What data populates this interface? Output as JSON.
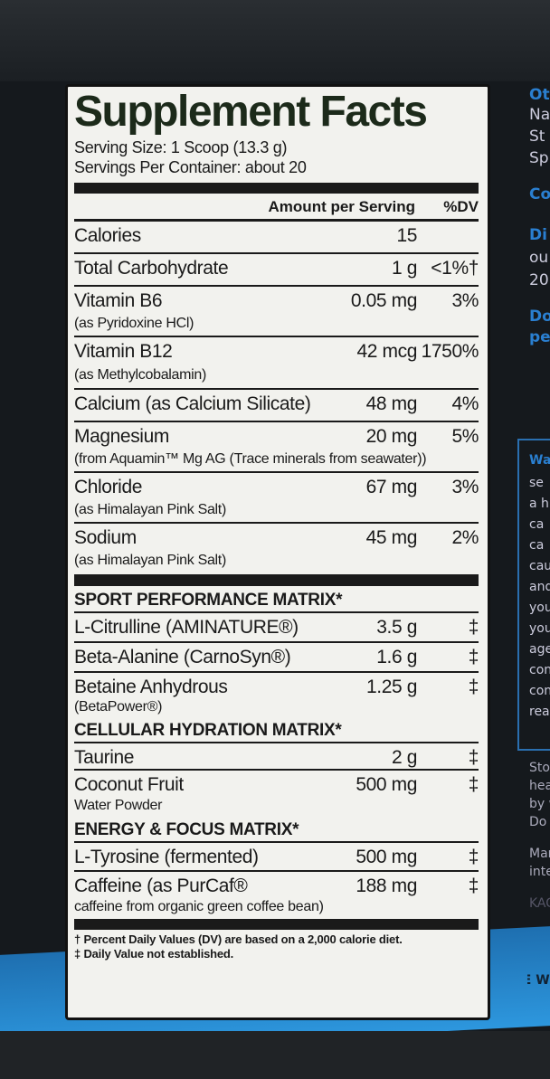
{
  "title": "Supplement Facts",
  "serving_size": "Serving Size: 1 Scoop (13.3 g)",
  "servings_per_container": "Servings Per Container: about 20",
  "header": {
    "amount": "Amount per Serving",
    "dv": "%DV"
  },
  "nutrients": [
    {
      "name": "Calories",
      "sub": "",
      "amount": "15",
      "dv": ""
    },
    {
      "name": "Total Carbohydrate",
      "sub": "",
      "amount": "1 g",
      "dv": "<1%†"
    },
    {
      "name": "Vitamin B6",
      "sub": "(as Pyridoxine HCl)",
      "amount": "0.05 mg",
      "dv": "3%"
    },
    {
      "name": "Vitamin B12",
      "sub": "(as Methylcobalamin)",
      "amount": "42 mcg",
      "dv": "1750%"
    },
    {
      "name": "Calcium (as Calcium Silicate)",
      "sub": "",
      "amount": "48 mg",
      "dv": "4%"
    },
    {
      "name": "Magnesium",
      "sub": "(from Aquamin™ Mg AG (Trace minerals from seawater))",
      "amount": "20 mg",
      "dv": "5%"
    },
    {
      "name": "Chloride",
      "sub": "(as Himalayan Pink Salt)",
      "amount": "67 mg",
      "dv": "3%"
    },
    {
      "name": "Sodium",
      "sub": "(as Himalayan Pink Salt)",
      "amount": "45 mg",
      "dv": "2%"
    }
  ],
  "sport": {
    "title": "SPORT PERFORMANCE MATRIX*",
    "items": [
      {
        "name": "L-Citrulline (AMINATURE®)",
        "sub": "",
        "amount": "3.5 g",
        "dv": "‡"
      },
      {
        "name": "Beta-Alanine (CarnoSyn®)",
        "sub": "",
        "amount": "1.6 g",
        "dv": "‡"
      },
      {
        "name": "Betaine Anhydrous",
        "sub": "(BetaPower®)",
        "amount": "1.25 g",
        "dv": "‡"
      }
    ]
  },
  "hydration": {
    "title": "CELLULAR HYDRATION MATRIX*",
    "items": [
      {
        "name": "Taurine",
        "sub": "",
        "amount": "2 g",
        "dv": "‡"
      },
      {
        "name": "Coconut Fruit",
        "sub": "Water Powder",
        "amount": "500 mg",
        "dv": "‡"
      }
    ]
  },
  "energy": {
    "title": "ENERGY & FOCUS MATRIX*",
    "items": [
      {
        "name": "L-Tyrosine (fermented)",
        "sub": "",
        "amount": "500 mg",
        "dv": "‡"
      },
      {
        "name": "Caffeine (as PurCaf®",
        "sub": "caffeine from organic green coffee bean)",
        "amount": "188 mg",
        "dv": "‡"
      }
    ]
  },
  "footnotes": [
    "† Percent Daily Values (DV) are based on a 2,000 calorie diet.",
    "‡ Daily Value not established."
  ],
  "side_text": [
    "Ot",
    "Na",
    "St",
    "Sp",
    "Co",
    "Di",
    "ou",
    "20",
    "Do",
    "pe",
    "Wa",
    "se",
    "a h",
    "ca",
    "ca",
    "cau",
    "and",
    "you",
    "you",
    "age",
    "con",
    "con",
    "rea",
    "Store",
    "heat.",
    "by we",
    "Do No",
    "Manu",
    "intern",
    "KAGE",
    "NEW"
  ],
  "colors": {
    "label_bg": "#f2f2ee",
    "ink": "#1a1a1a",
    "accent_blue": "#2a8fd6",
    "container": "#15191d"
  }
}
